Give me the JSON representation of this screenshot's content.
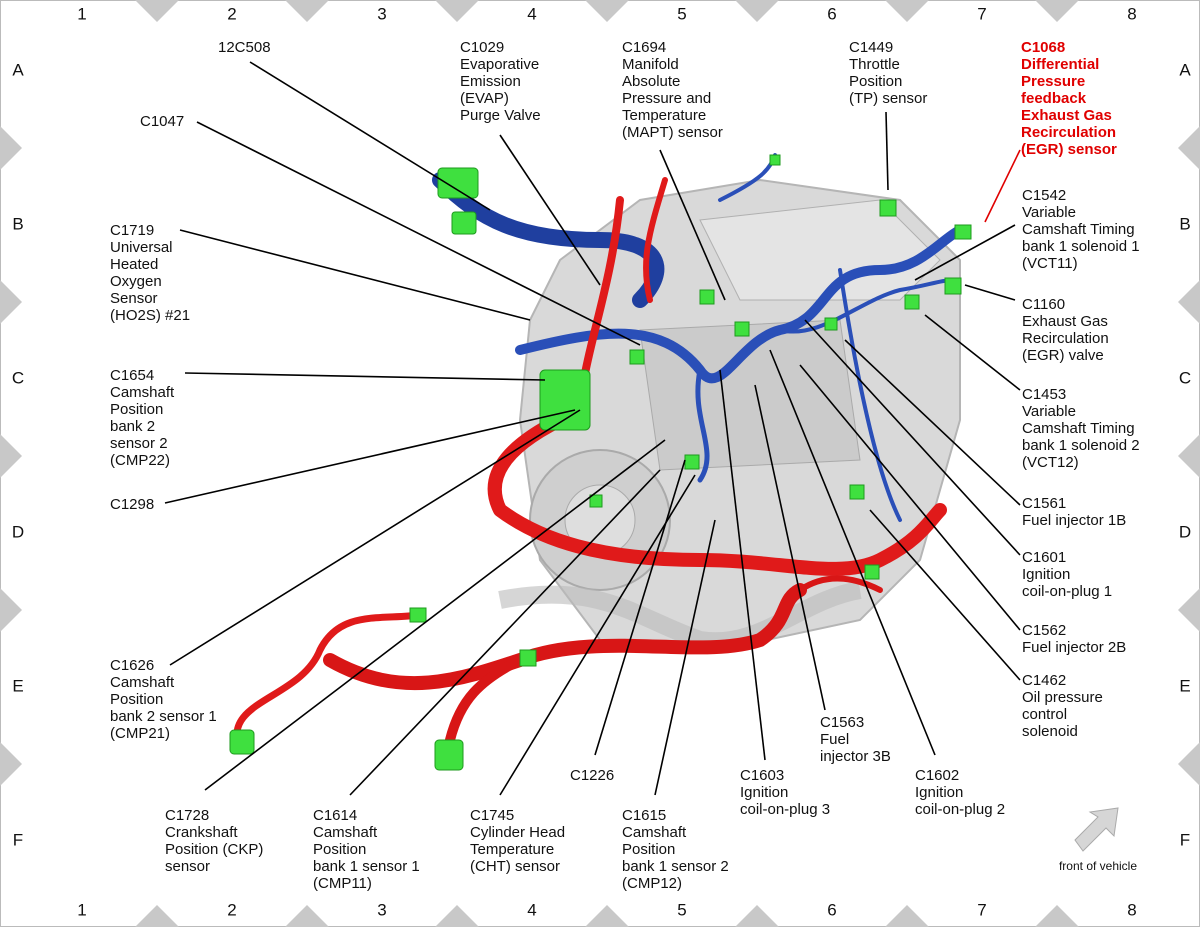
{
  "grid": {
    "columns": [
      "1",
      "2",
      "3",
      "4",
      "5",
      "6",
      "7",
      "8"
    ],
    "rows": [
      "A",
      "B",
      "C",
      "D",
      "E",
      "F"
    ]
  },
  "callouts": [
    {
      "lines": [
        "12C508"
      ]
    },
    {
      "lines": [
        "C1029",
        "Evaporative",
        "Emission",
        "(EVAP)",
        "Purge Valve"
      ]
    },
    {
      "lines": [
        "C1694",
        "Manifold",
        "Absolute",
        "Pressure and",
        "Temperature",
        "(MAPT) sensor"
      ]
    },
    {
      "lines": [
        "C1449",
        "Throttle",
        "Position",
        "(TP) sensor"
      ]
    },
    {
      "lines": [
        "C1068",
        "Differential",
        "Pressure",
        "feedback",
        "Exhaust Gas",
        "Recirculation",
        "(EGR) sensor"
      ]
    },
    {
      "lines": [
        "C1047"
      ]
    },
    {
      "lines": [
        "C1719",
        "Universal",
        "Heated",
        "Oxygen",
        "Sensor",
        "(HO2S) #21"
      ]
    },
    {
      "lines": [
        "C1542",
        "Variable",
        "Camshaft Timing",
        "bank 1 solenoid 1",
        "(VCT11)"
      ]
    },
    {
      "lines": [
        "C1160",
        "Exhaust Gas",
        "Recirculation",
        "(EGR) valve"
      ]
    },
    {
      "lines": [
        "C1654",
        "Camshaft",
        "Position",
        "bank 2",
        "sensor 2",
        "(CMP22)"
      ]
    },
    {
      "lines": [
        "C1453",
        "Variable",
        "Camshaft Timing",
        "bank 1 solenoid 2",
        "(VCT12)"
      ]
    },
    {
      "lines": [
        "C1298"
      ]
    },
    {
      "lines": [
        "C1561",
        "Fuel injector 1B"
      ]
    },
    {
      "lines": [
        "C1601",
        "Ignition",
        "coil-on-plug 1"
      ]
    },
    {
      "lines": [
        "C1562",
        "Fuel injector 2B"
      ]
    },
    {
      "lines": [
        "C1462",
        "Oil pressure",
        "control",
        "solenoid"
      ]
    },
    {
      "lines": [
        "C1626",
        "Camshaft",
        "Position",
        "bank 2 sensor 1",
        "(CMP21)"
      ]
    },
    {
      "lines": [
        "C1563",
        "Fuel",
        "injector 3B"
      ]
    },
    {
      "lines": [
        "C1603",
        "Ignition",
        "coil-on-plug 3"
      ]
    },
    {
      "lines": [
        "C1602",
        "Ignition",
        "coil-on-plug 2"
      ]
    },
    {
      "lines": [
        "C1226"
      ]
    },
    {
      "lines": [
        "C1728",
        "Crankshaft",
        "Position (CKP)",
        "sensor"
      ]
    },
    {
      "lines": [
        "C1614",
        "Camshaft",
        "Position",
        "bank 1 sensor 1",
        "(CMP11)"
      ]
    },
    {
      "lines": [
        "C1745",
        "Cylinder Head",
        "Temperature",
        "(CHT) sensor"
      ]
    },
    {
      "lines": [
        "C1615",
        "Camshaft",
        "Position",
        "bank 1 sensor 2",
        "(CMP12)"
      ]
    }
  ],
  "front_label": "front of vehicle"
}
